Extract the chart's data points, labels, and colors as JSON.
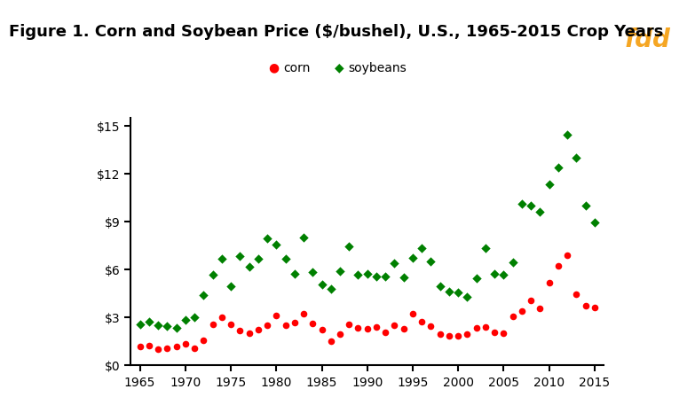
{
  "title": "Figure 1. Corn and Soybean Price ($/bushel), U.S., 1965-2015 Crop Years",
  "corn_years": [
    1965,
    1966,
    1967,
    1968,
    1969,
    1970,
    1971,
    1972,
    1973,
    1974,
    1975,
    1976,
    1977,
    1978,
    1979,
    1980,
    1981,
    1982,
    1983,
    1984,
    1985,
    1986,
    1987,
    1988,
    1989,
    1990,
    1991,
    1992,
    1993,
    1994,
    1995,
    1996,
    1997,
    1998,
    1999,
    2000,
    2001,
    2002,
    2003,
    2004,
    2005,
    2006,
    2007,
    2008,
    2009,
    2010,
    2011,
    2012,
    2013,
    2014,
    2015
  ],
  "corn_prices": [
    1.16,
    1.24,
    1.03,
    1.08,
    1.15,
    1.33,
    1.08,
    1.57,
    2.55,
    3.02,
    2.54,
    2.15,
    2.02,
    2.25,
    2.52,
    3.11,
    2.5,
    2.68,
    3.21,
    2.63,
    2.23,
    1.5,
    1.94,
    2.54,
    2.36,
    2.28,
    2.37,
    2.07,
    2.5,
    2.26,
    3.24,
    2.71,
    2.43,
    1.94,
    1.82,
    1.85,
    1.97,
    2.32,
    2.42,
    2.06,
    2.0,
    3.04,
    3.39,
    4.06,
    3.55,
    5.18,
    6.22,
    6.89,
    4.46,
    3.7,
    3.61
  ],
  "soy_years": [
    1965,
    1966,
    1967,
    1968,
    1969,
    1970,
    1971,
    1972,
    1973,
    1974,
    1975,
    1976,
    1977,
    1978,
    1979,
    1980,
    1981,
    1982,
    1983,
    1984,
    1985,
    1986,
    1987,
    1988,
    1989,
    1990,
    1991,
    1992,
    1993,
    1994,
    1995,
    1996,
    1997,
    1998,
    1999,
    2000,
    2001,
    2002,
    2003,
    2004,
    2005,
    2006,
    2007,
    2008,
    2009,
    2010,
    2011,
    2012,
    2013,
    2014,
    2015
  ],
  "soy_prices": [
    2.54,
    2.75,
    2.49,
    2.43,
    2.35,
    2.85,
    3.03,
    4.37,
    5.68,
    6.64,
    4.92,
    6.81,
    6.19,
    6.66,
    7.94,
    7.57,
    6.67,
    5.71,
    8.0,
    5.84,
    5.05,
    4.78,
    5.88,
    7.42,
    5.69,
    5.74,
    5.58,
    5.56,
    6.4,
    5.48,
    6.72,
    7.35,
    6.47,
    4.93,
    4.63,
    4.54,
    4.3,
    5.45,
    7.34,
    5.74,
    5.66,
    6.43,
    10.1,
    9.97,
    9.59,
    11.3,
    12.37,
    14.4,
    13.0,
    9.97,
    8.95
  ],
  "corn_color": "#FF0000",
  "soy_color": "#008000",
  "xlim": [
    1964,
    2016
  ],
  "ylim": [
    0,
    15.5
  ],
  "yticks": [
    0,
    3,
    6,
    9,
    12,
    15
  ],
  "ytick_labels": [
    "$0",
    "$3",
    "$6",
    "$9",
    "$12",
    "$15"
  ],
  "xticks": [
    1965,
    1970,
    1975,
    1980,
    1985,
    1990,
    1995,
    2000,
    2005,
    2010,
    2015
  ],
  "background_color": "#FFFFFF",
  "logo_bg": "#3D3D8F",
  "logo_text": "fdd",
  "logo_color": "#F5A623",
  "title_fontsize": 13,
  "legend_corn": "corn",
  "legend_soy": "soybeans"
}
